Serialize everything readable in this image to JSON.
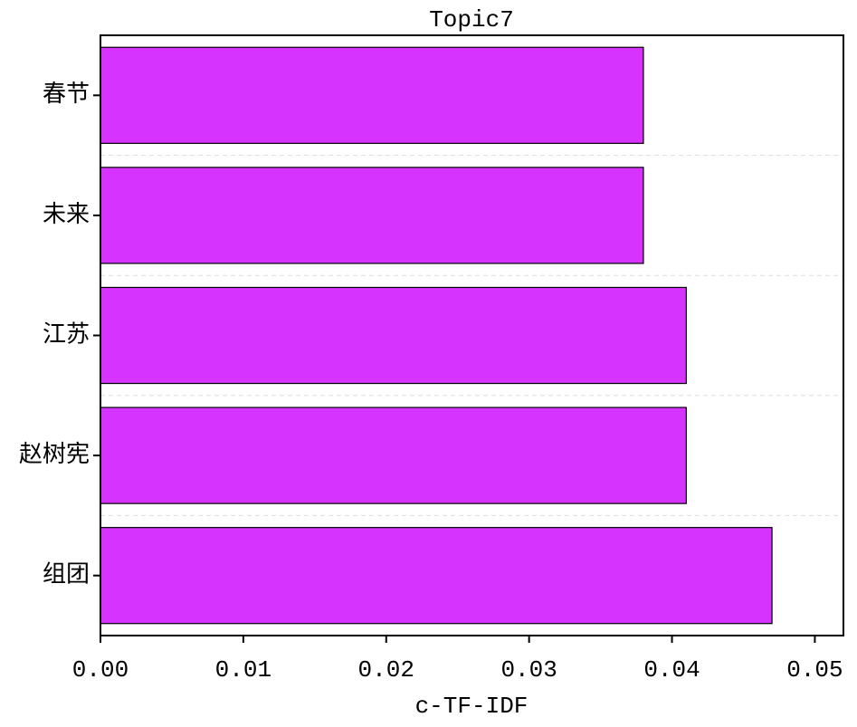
{
  "chart_data": {
    "type": "barh",
    "title": "Topic7",
    "xlabel": "c-TF-IDF",
    "categories": [
      "春节",
      "未来",
      "江苏",
      "赵树宪",
      "组团"
    ],
    "values": [
      0.038,
      0.038,
      0.041,
      0.041,
      0.047
    ],
    "color": "#d633ff",
    "xlim": [
      0,
      0.052
    ],
    "xticks": [
      {
        "value": 0,
        "label": "0.00"
      },
      {
        "value": 0.01,
        "label": "0.01"
      },
      {
        "value": 0.02,
        "label": "0.02"
      },
      {
        "value": 0.03,
        "label": "0.03"
      },
      {
        "value": 0.04,
        "label": "0.04"
      },
      {
        "value": 0.05,
        "label": "0.05"
      }
    ],
    "grid": true
  }
}
